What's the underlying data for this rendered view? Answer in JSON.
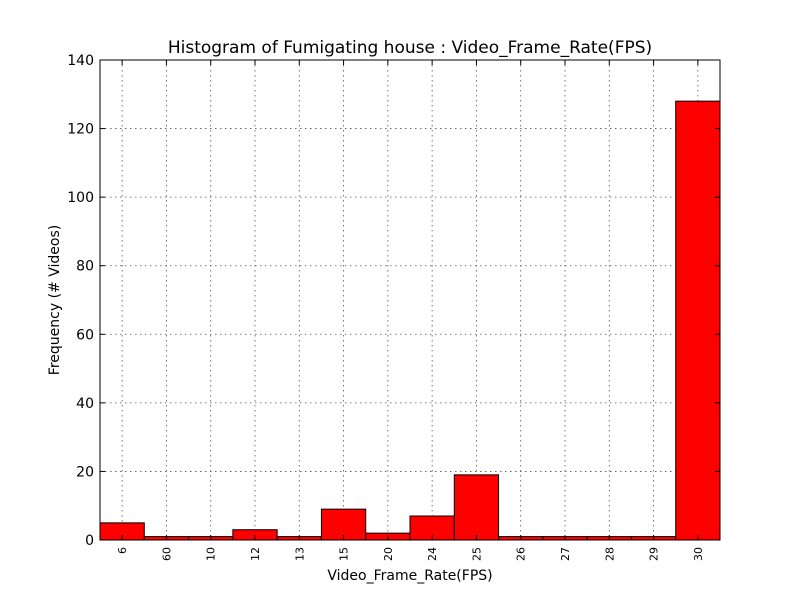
{
  "chart_data": {
    "type": "bar",
    "title": "Histogram of Fumigating house : Video_Frame_Rate(FPS)",
    "xlabel": "Video_Frame_Rate(FPS)",
    "ylabel": "Frequency (# Videos)",
    "categories": [
      "6",
      "60",
      "10",
      "12",
      "13",
      "15",
      "20",
      "24",
      "25",
      "26",
      "27",
      "28",
      "29",
      "30"
    ],
    "values": [
      5,
      1,
      1,
      3,
      1,
      9,
      2,
      7,
      19,
      1,
      1,
      1,
      1,
      128
    ],
    "ylim": [
      0,
      140
    ],
    "yticks": [
      0,
      20,
      40,
      60,
      80,
      100,
      120,
      140
    ],
    "grid": true,
    "bar_color": "#ff0000"
  }
}
